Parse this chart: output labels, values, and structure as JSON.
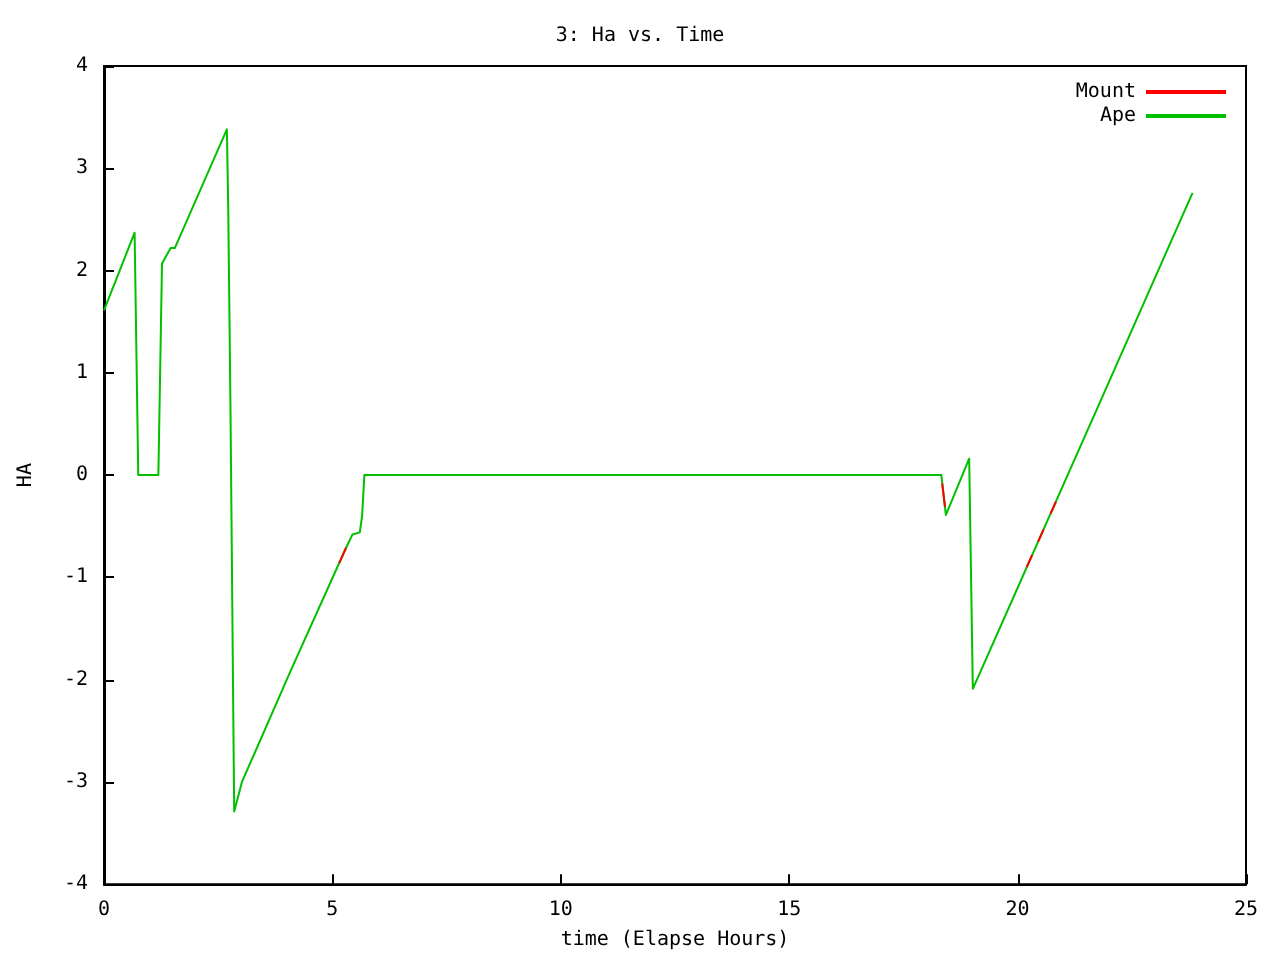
{
  "chart_data": {
    "type": "line",
    "title": "3: Ha vs. Time",
    "xlabel": "time (Elapse Hours)",
    "ylabel": "HA",
    "xlim": [
      0,
      25
    ],
    "xticks": [
      0,
      5,
      10,
      15,
      20,
      25
    ],
    "ylim": [
      -4,
      4
    ],
    "yticks": [
      -4,
      -3,
      -2,
      -1,
      0,
      1,
      2,
      3,
      4
    ],
    "grid": false,
    "legend": "top right",
    "marker": "none",
    "line_style": "solid",
    "x": [
      0,
      0.67,
      0.75,
      1.19,
      1.27,
      1.46,
      1.55,
      2.69,
      2.72,
      2.77,
      2.85,
      3.02,
      4.1,
      5.27,
      5.44,
      5.6,
      5.65,
      5.7,
      18.33,
      18.43,
      18.94,
      19.02,
      21.86,
      23.83
    ],
    "series": [
      {
        "name": "Mount",
        "color": "#ff0000",
        "x": [
          5.15,
          5.3,
          5.31,
          18.35,
          18.41,
          18.42,
          20.2,
          20.32,
          20.33,
          20.45,
          20.57,
          20.58,
          20.72,
          20.84
        ],
        "values": [
          -0.86,
          -0.71,
          null,
          -0.08,
          -0.31,
          null,
          -0.9,
          -0.78,
          null,
          -0.65,
          -0.53,
          null,
          -0.38,
          -0.26
        ]
      },
      {
        "name": "Ape",
        "color": "#00c000",
        "values": [
          1.61,
          2.37,
          0,
          0,
          2.07,
          2.22,
          2.22,
          3.38,
          2.6,
          0.6,
          -3.29,
          -3.0,
          -1.9,
          -0.74,
          -0.58,
          -0.56,
          -0.4,
          0,
          0,
          -0.39,
          0.16,
          -2.09,
          0.77,
          2.76
        ]
      }
    ]
  }
}
